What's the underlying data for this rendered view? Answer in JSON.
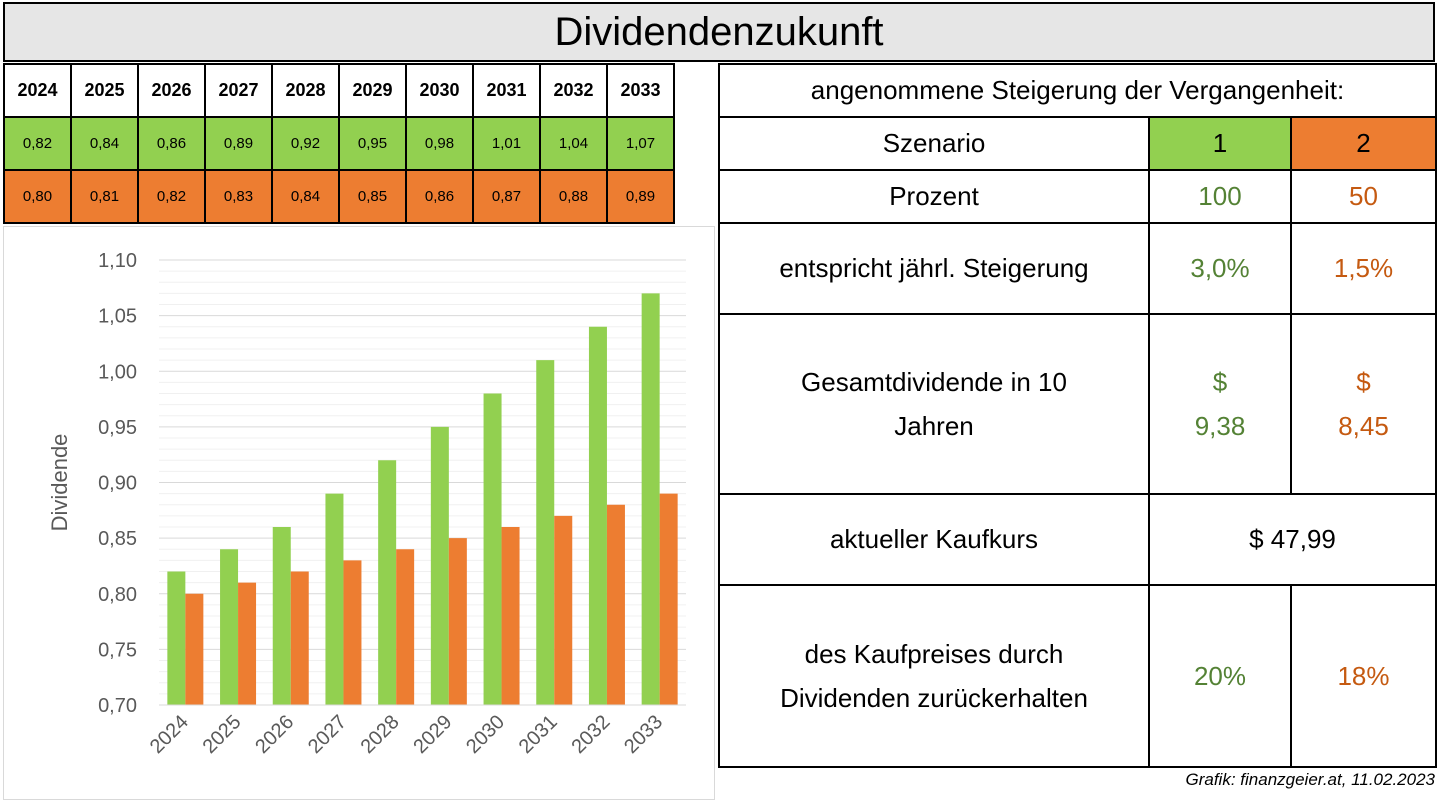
{
  "title": "Dividendenzukunft",
  "years": [
    "2024",
    "2025",
    "2026",
    "2027",
    "2028",
    "2029",
    "2030",
    "2031",
    "2032",
    "2033"
  ],
  "scenario1_values": [
    "0,82",
    "0,84",
    "0,86",
    "0,89",
    "0,92",
    "0,95",
    "0,98",
    "1,01",
    "1,04",
    "1,07"
  ],
  "scenario2_values": [
    "0,80",
    "0,81",
    "0,82",
    "0,83",
    "0,84",
    "0,85",
    "0,86",
    "0,87",
    "0,88",
    "0,89"
  ],
  "colors": {
    "scenario1": "#92d050",
    "scenario2": "#ed7d31",
    "scenario1_text": "#548235",
    "scenario2_text": "#c55a11"
  },
  "info": {
    "header": "angenommene Steigerung der Vergangenheit:",
    "szenario_label": "Szenario",
    "szenario_1": "1",
    "szenario_2": "2",
    "prozent_label": "Prozent",
    "prozent_1": "100",
    "prozent_2": "50",
    "steigerung_label": "entspricht jährl. Steigerung",
    "steigerung_1": "3,0%",
    "steigerung_2": "1,5%",
    "gesamt_label_line1": "Gesamtdividende in 10",
    "gesamt_label_line2": "Jahren",
    "gesamt_1_cur": "$",
    "gesamt_1_val": "9,38",
    "gesamt_2_cur": "$",
    "gesamt_2_val": "8,45",
    "kaufkurs_label": "aktueller Kaufkurs",
    "kaufkurs_value": "$ 47,99",
    "kaufpreis_label_line1": "des Kaufpreises durch",
    "kaufpreis_label_line2": "Dividenden zurückerhalten",
    "kaufpreis_1": "20%",
    "kaufpreis_2": "18%"
  },
  "credit": "Grafik: finanzgeier.at, 11.02.2023",
  "chart_data": {
    "type": "bar",
    "categories": [
      "2024",
      "2025",
      "2026",
      "2027",
      "2028",
      "2029",
      "2030",
      "2031",
      "2032",
      "2033"
    ],
    "series": [
      {
        "name": "1",
        "values": [
          0.82,
          0.84,
          0.86,
          0.89,
          0.92,
          0.95,
          0.98,
          1.01,
          1.04,
          1.07
        ]
      },
      {
        "name": "2",
        "values": [
          0.8,
          0.81,
          0.82,
          0.83,
          0.84,
          0.85,
          0.86,
          0.87,
          0.88,
          0.89
        ]
      }
    ],
    "ylabel": "Dividende",
    "xlabel": "",
    "ylim": [
      0.7,
      1.1
    ],
    "yticks": [
      "0,70",
      "0,75",
      "0,80",
      "0,85",
      "0,90",
      "0,95",
      "1,00",
      "1,05",
      "1,10"
    ],
    "grid": true,
    "legend": "none"
  }
}
